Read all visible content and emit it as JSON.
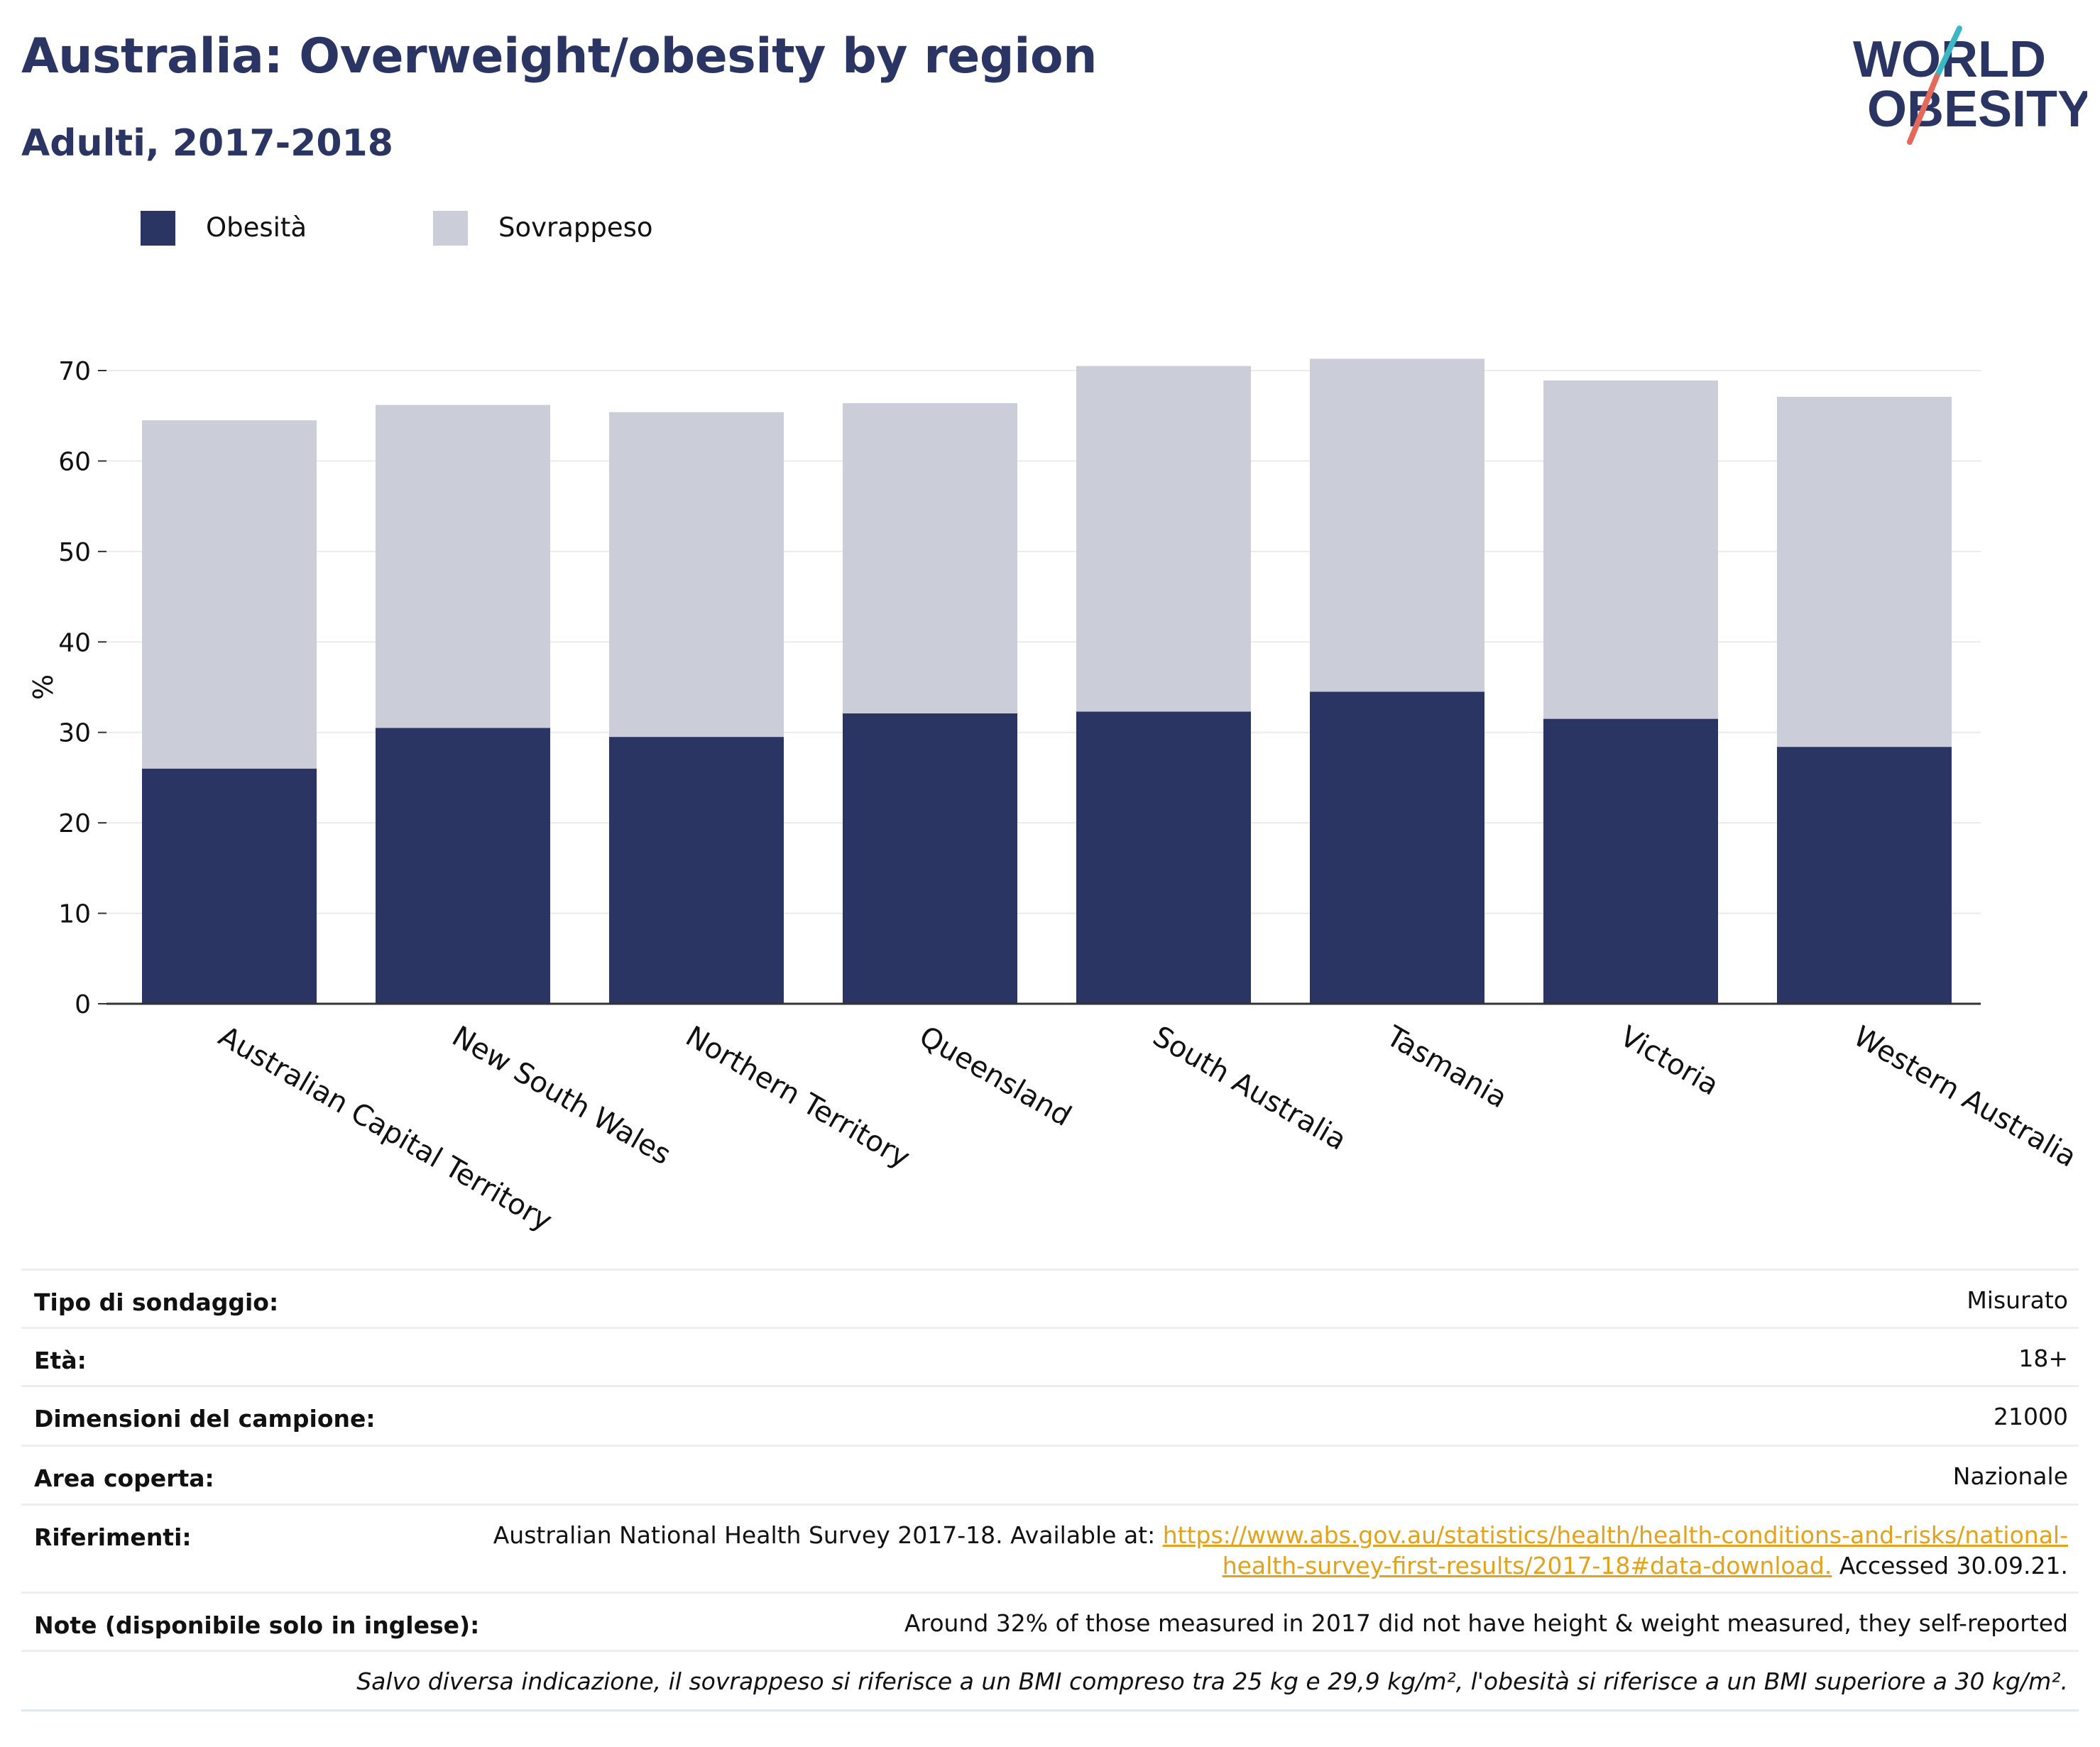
{
  "header": {
    "title": "Australia: Overweight/obesity by region",
    "subtitle": "Adulti, 2017-2018"
  },
  "logo": {
    "line1": "WORLD",
    "line2": "OBESITY"
  },
  "colors": {
    "obesity": "#2b3563",
    "overweight": "#cbcdd8",
    "title": "#2b3563",
    "link": "#e3a21a",
    "logo_slash_top": "#3bb8c4",
    "logo_slash_bottom": "#e5685b"
  },
  "legend": [
    {
      "label": "Obesità",
      "color": "#2b3563"
    },
    {
      "label": "Sovrappeso",
      "color": "#cbcdd8"
    }
  ],
  "chart_data": {
    "type": "bar",
    "stacked": true,
    "categories": [
      "Australian Capital Territory",
      "New South Wales",
      "Northern Territory",
      "Queensland",
      "South Australia",
      "Tasmania",
      "Victoria",
      "Western Australia"
    ],
    "series": [
      {
        "name": "Obesità",
        "values": [
          26.0,
          30.5,
          29.5,
          32.1,
          32.3,
          34.5,
          31.5,
          28.4
        ]
      },
      {
        "name": "Sovrappeso",
        "values": [
          38.5,
          35.7,
          35.9,
          34.3,
          38.2,
          36.8,
          37.4,
          38.7
        ]
      }
    ],
    "ylabel": "%",
    "xlabel": "",
    "ylim": [
      0,
      70
    ],
    "yticks": [
      0,
      10,
      20,
      30,
      40,
      50,
      60,
      70
    ],
    "grid": true,
    "legend_position": "top-left"
  },
  "meta": {
    "rows": [
      {
        "key": "Tipo di sondaggio:",
        "value": "Misurato"
      },
      {
        "key": "Età:",
        "value": "18+"
      },
      {
        "key": "Dimensioni del campione:",
        "value": "21000"
      },
      {
        "key": "Area coperta:",
        "value": "Nazionale"
      }
    ],
    "references": {
      "key": "Riferimenti:",
      "before": "Australian National Health Survey 2017-18. Available at: ",
      "link_line1": "https://www.abs.gov.au/statistics/health/health-conditions-and-risks/national-",
      "link_line2": "health-survey-first-results/2017-18#data-download.",
      "after": " Accessed 30.09.21."
    },
    "notes": {
      "key": "Note (disponibile solo in inglese):",
      "value": "Around 32% of those measured in 2017 did not have height & weight measured, they self-reported"
    },
    "footnote": "Salvo diversa indicazione, il sovrappeso si riferisce a un BMI compreso tra 25 kg e 29,9 kg/m², l'obesità si riferisce a un BMI superiore a 30 kg/m²."
  }
}
